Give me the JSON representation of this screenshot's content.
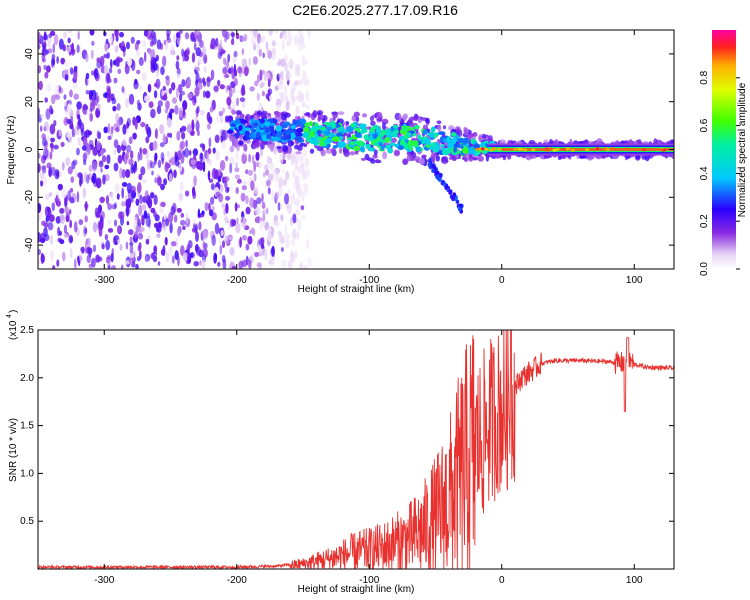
{
  "figure_title": "C2E6.2025.277.17.09.R16",
  "colors": {
    "snr_line": "#e8312e",
    "axis": "#000000",
    "background": "#ffffff"
  },
  "chart_data": [
    {
      "type": "heatmap",
      "name": "spectrogram",
      "xlabel": "Height of straight line (km)",
      "ylabel": "Frequency (Hz)",
      "xlim": [
        -350,
        130
      ],
      "ylim": [
        -50,
        50
      ],
      "x_ticks": [
        -300,
        -200,
        -100,
        0,
        100
      ],
      "x_tick_labels": [
        "-300",
        "-200",
        "-100",
        "0",
        "100"
      ],
      "y_ticks": [
        -40,
        -20,
        0,
        20,
        40
      ],
      "y_tick_labels": [
        "-40",
        "-20",
        "0",
        "20",
        "40"
      ],
      "colorbar": {
        "label": "Normalized spectral amplitude",
        "range": [
          0,
          1
        ],
        "ticks": [
          0,
          0.2,
          0.4,
          0.6,
          0.8
        ],
        "tick_labels": [
          "0.0",
          "0.2",
          "0.4",
          "0.6",
          "0.8"
        ]
      },
      "features": {
        "noise_region_x": [
          -350,
          -160
        ],
        "signal_band": [
          {
            "x": -205,
            "center_hz": 9,
            "width_hz": 6
          },
          {
            "x": -150,
            "center_hz": 7,
            "width_hz": 8
          },
          {
            "x": -100,
            "center_hz": 5,
            "width_hz": 9
          },
          {
            "x": -60,
            "center_hz": 4,
            "width_hz": 9
          },
          {
            "x": -30,
            "center_hz": 2,
            "width_hz": 6
          },
          {
            "x": 0,
            "center_hz": 0,
            "width_hz": 3
          },
          {
            "x": 130,
            "center_hz": 0,
            "width_hz": 3
          }
        ]
      }
    },
    {
      "type": "line",
      "name": "snr",
      "xlabel": "Height of straight line (km)",
      "ylabel": "SNR (10 * v/v)",
      "y_scale_label": "(x10",
      "y_scale_exp": "4",
      "xlim": [
        -350,
        130
      ],
      "ylim": [
        0,
        2.5
      ],
      "x_ticks": [
        -300,
        -200,
        -100,
        0,
        100
      ],
      "x_tick_labels": [
        "-300",
        "-200",
        "-100",
        "0",
        "100"
      ],
      "y_ticks": [
        0.5,
        1.0,
        1.5,
        2.0,
        2.5
      ],
      "y_tick_labels": [
        "0.5",
        "1.0",
        "1.5",
        "2.0",
        "2.5"
      ],
      "x": [
        -350,
        -200,
        -170,
        -150,
        -130,
        -110,
        -100,
        -90,
        -80,
        -70,
        -60,
        -50,
        -40,
        -30,
        -20,
        -15,
        -10,
        -5,
        0,
        5,
        10,
        15,
        20,
        30,
        40,
        60,
        80,
        90,
        95,
        100,
        110,
        130
      ],
      "y": [
        0.02,
        0.02,
        0.03,
        0.06,
        0.12,
        0.2,
        0.22,
        0.25,
        0.3,
        0.35,
        0.45,
        0.6,
        0.8,
        1.1,
        1.4,
        1.45,
        1.6,
        1.7,
        1.75,
        1.8,
        1.9,
        2.0,
        2.05,
        2.15,
        2.18,
        2.18,
        2.17,
        2.15,
        2.2,
        2.14,
        2.11,
        2.1
      ]
    }
  ]
}
